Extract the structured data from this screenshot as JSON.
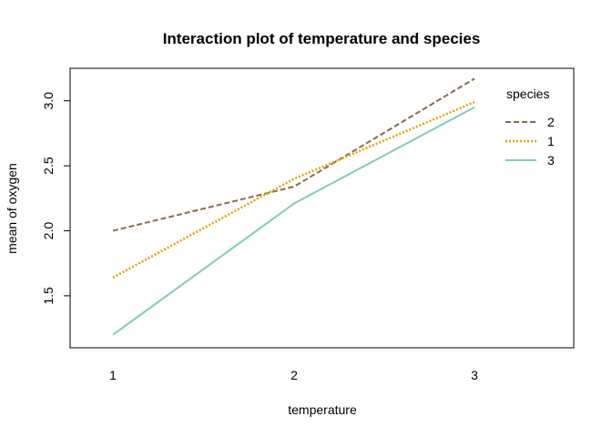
{
  "chart_data": {
    "type": "line",
    "title": "Interaction plot of temperature and species",
    "xlabel": "temperature",
    "ylabel": "mean of  oxygen",
    "categories": [
      "1",
      "2",
      "3"
    ],
    "ylim": [
      1.1,
      3.25
    ],
    "yticks": [
      "1.5",
      "2.0",
      "2.5",
      "3.0"
    ],
    "legend": {
      "title": "species",
      "position": "top-right"
    },
    "series": [
      {
        "name": "2",
        "values": [
          2.0,
          2.34,
          3.17
        ],
        "color": "#8B6B4A",
        "style": "dashed"
      },
      {
        "name": "1",
        "values": [
          1.64,
          2.4,
          2.99
        ],
        "color": "#E69F00",
        "style": "dotted"
      },
      {
        "name": "3",
        "values": [
          1.2,
          2.21,
          2.95
        ],
        "color": "#7FCDBB",
        "style": "solid"
      }
    ]
  }
}
